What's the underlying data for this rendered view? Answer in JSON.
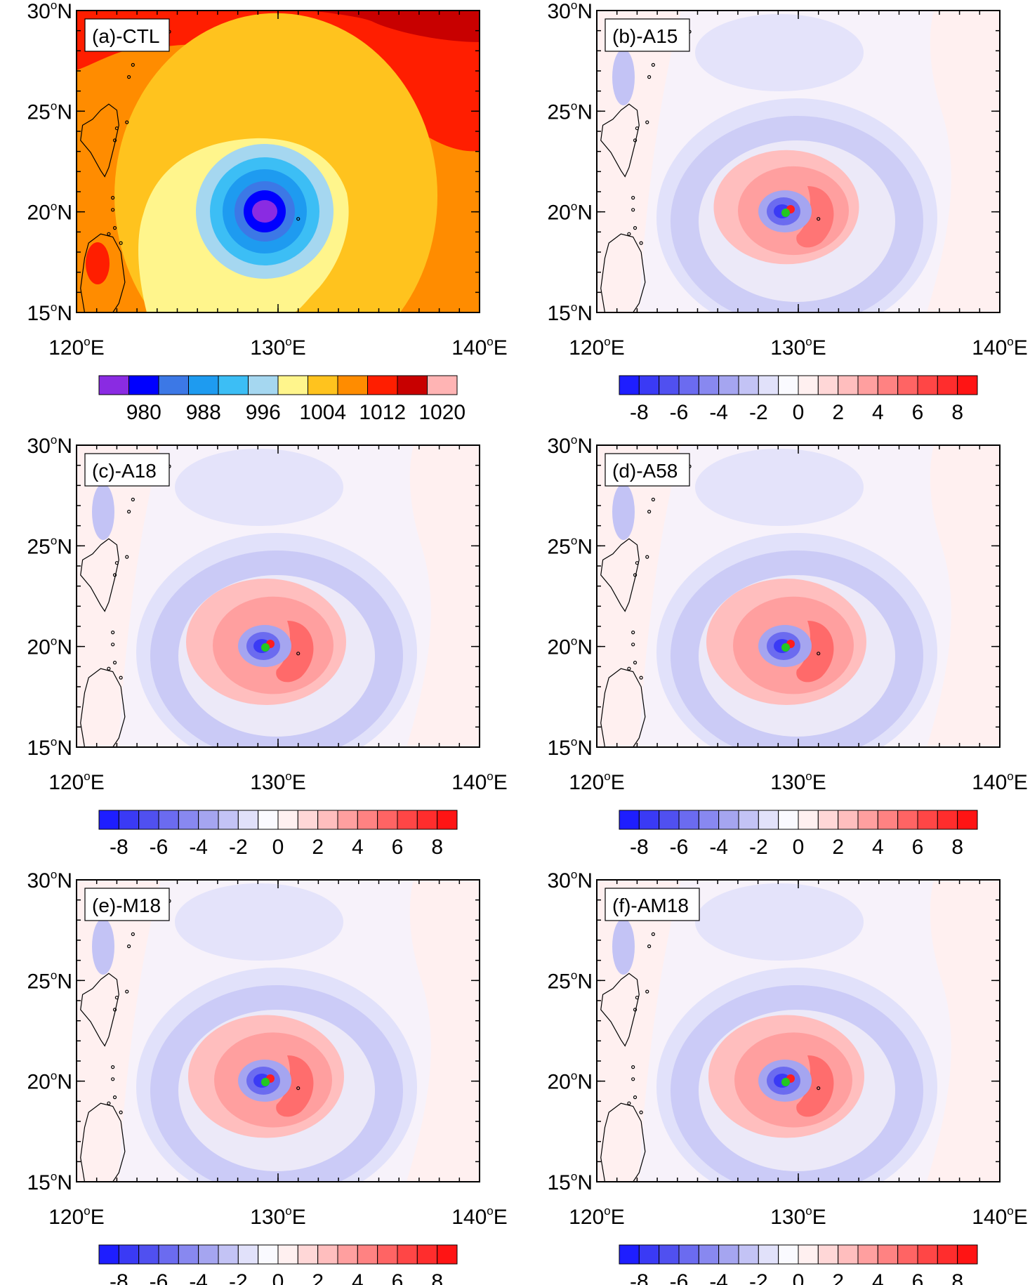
{
  "axes": {
    "lat_labels": [
      "30°N",
      "25°N",
      "20°N",
      "15°N"
    ],
    "lon_labels": [
      "120°E",
      "130°E",
      "140°E"
    ],
    "lat_range": [
      15,
      30
    ],
    "lon_range": [
      120,
      140
    ]
  },
  "panels": [
    {
      "id": "a",
      "label": "(a)-CTL",
      "field": "absolute"
    },
    {
      "id": "b",
      "label": "(b)-A15",
      "field": "difference",
      "anom_strength": 0.55,
      "inner_red": 0.45
    },
    {
      "id": "c",
      "label": "(c)-A18",
      "field": "difference",
      "anom_strength": 0.9,
      "inner_red": 0.8
    },
    {
      "id": "d",
      "label": "(d)-A58",
      "field": "difference",
      "anom_strength": 0.85,
      "inner_red": 0.8
    },
    {
      "id": "e",
      "label": "(e)-M18",
      "field": "difference",
      "anom_strength": 0.8,
      "inner_red": 0.7
    },
    {
      "id": "f",
      "label": "(f)-AM18",
      "field": "difference",
      "anom_strength": 0.75,
      "inner_red": 0.7
    }
  ],
  "colorbars": {
    "absolute": {
      "labels": [
        "980",
        "988",
        "996",
        "1004",
        "1012",
        "1020"
      ],
      "colors": [
        "#8a2be2",
        "#0000ff",
        "#3c78e6",
        "#1e9bf0",
        "#3cbef5",
        "#a5d7f0",
        "#fff58c",
        "#ffc31e",
        "#ff8c00",
        "#ff1e00",
        "#c80000",
        "#ffb4b4"
      ]
    },
    "difference": {
      "labels": [
        "-8",
        "-6",
        "-4",
        "-2",
        "0",
        "2",
        "4",
        "6",
        "8"
      ],
      "colors": [
        "#1e1eff",
        "#3a3af5",
        "#5050f0",
        "#6b6bf0",
        "#8888f0",
        "#a5a5f0",
        "#c3c3f5",
        "#e1e1fa",
        "#fafaff",
        "#fff0f0",
        "#ffd7d7",
        "#ffbebe",
        "#ff9f9f",
        "#ff8282",
        "#ff6464",
        "#ff4646",
        "#ff2d2d",
        "#ff1414"
      ]
    }
  },
  "storm_markers": {
    "green": "#22c822",
    "red": "#ff1e1e"
  }
}
